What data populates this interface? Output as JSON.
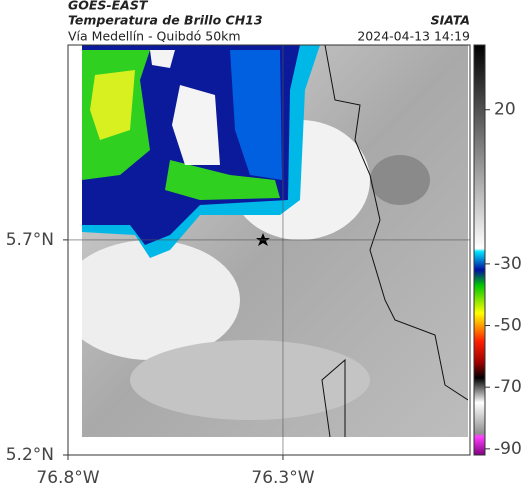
{
  "header": {
    "title": "GOES-EAST",
    "subtitle": "Temperatura de Brillo CH13",
    "region": "Vía Medellín - Quibdó 50km",
    "source": "SIATA",
    "timestamp": "2024-04-13 14:19"
  },
  "map": {
    "xlim": [
      -76.8,
      -75.865
    ],
    "ylim": [
      5.2,
      6.153
    ],
    "xticks": [
      {
        "value": -76.8,
        "label": "76.8°W"
      },
      {
        "value": -76.3,
        "label": "76.3°W"
      }
    ],
    "yticks": [
      {
        "value": 5.2,
        "label": "5.2°N"
      },
      {
        "value": 5.7,
        "label": "5.7°N"
      }
    ],
    "grid": true
  },
  "colorbar": {
    "clim": [
      -92,
      41
    ],
    "ticks": [
      20,
      -30,
      -50,
      -70,
      -90
    ],
    "colormap": [
      [
        41,
        "#000000"
      ],
      [
        -25,
        "#ffffff"
      ],
      [
        -26,
        "#00e5ff"
      ],
      [
        -32,
        "#0010a0"
      ],
      [
        -37,
        "#00c800"
      ],
      [
        -46,
        "#ffff00"
      ],
      [
        -55,
        "#ff2000"
      ],
      [
        -62,
        "#a00000"
      ],
      [
        -67,
        "#000000"
      ],
      [
        -75,
        "#ffffff"
      ],
      [
        -85,
        "#909090"
      ],
      [
        -86,
        "#ff40ff"
      ],
      [
        -92,
        "#800080"
      ]
    ]
  }
}
